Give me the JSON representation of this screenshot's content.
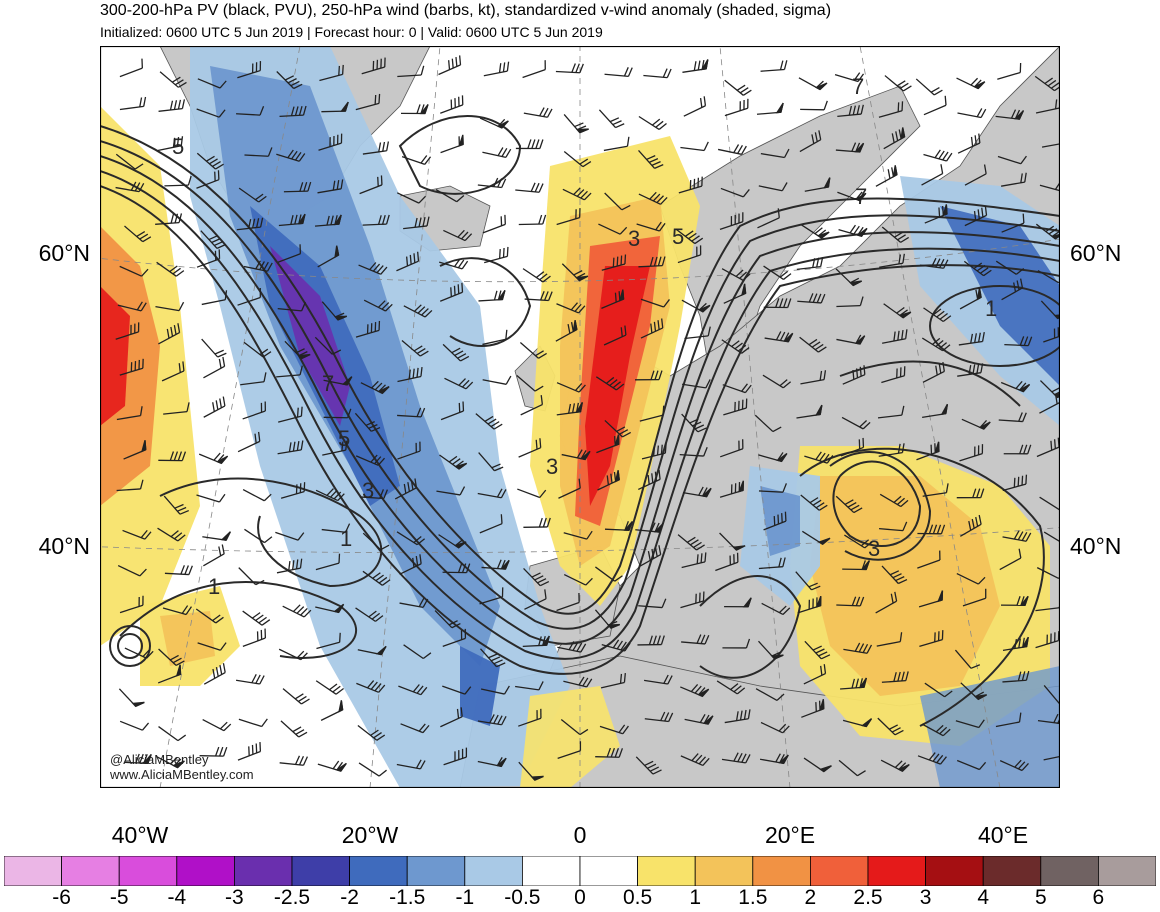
{
  "title": "300-200-hPa PV (black, PVU), 250-hPa wind (barbs, kt), standardized v-wind anomaly (shaded, sigma)",
  "subtitle": "Initialized: 0600 UTC 5 Jun 2019 | Forecast hour: 0 | Valid: 0600 UTC 5 Jun 2019",
  "lat_labels": [
    "60°N",
    "40°N"
  ],
  "lon_labels": [
    "40°W",
    "20°W",
    "0",
    "20°E",
    "40°E"
  ],
  "credits": [
    "@AliciaMBentley",
    "www.AliciaMBentley.com"
  ],
  "colorbar": {
    "labels": [
      "-6",
      "-5",
      "-4",
      "-3",
      "-2.5",
      "-2",
      "-1.5",
      "-1",
      "-0.5",
      "0",
      "0.5",
      "1",
      "1.5",
      "2",
      "2.5",
      "3",
      "4",
      "5",
      "6"
    ],
    "colors": [
      "#ebb6e6",
      "#e67fe3",
      "#d94ddc",
      "#b010c8",
      "#6a2fae",
      "#3e3ea8",
      "#3f6bbd",
      "#6e98cf",
      "#a9c9e6",
      "#ffffff",
      "#ffffff",
      "#f8e36a",
      "#f3c35a",
      "#f19244",
      "#f0603a",
      "#e51a1a",
      "#a50f12",
      "#6b2b2b",
      "#706262",
      "#a89c9c"
    ]
  },
  "map_colors": {
    "land": "#c8c8c8",
    "ocean": "#ffffff",
    "contour": "#2a2a2a",
    "barb": "#222222"
  },
  "contour_labels": [
    "5",
    "7",
    "5",
    "3",
    "1",
    "1",
    "3",
    "5",
    "3",
    "7",
    "7",
    "1",
    "3"
  ]
}
